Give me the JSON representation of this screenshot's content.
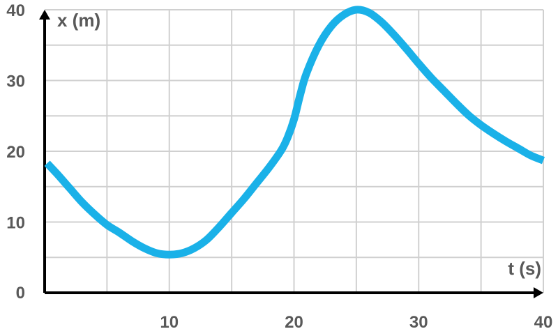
{
  "chart_data": {
    "type": "line",
    "title": "",
    "xlabel": "t (s)",
    "ylabel": "x (m)",
    "xlim": [
      0,
      40
    ],
    "ylim": [
      0,
      40
    ],
    "grid": true,
    "x_ticks": [
      0,
      5,
      10,
      15,
      20,
      25,
      30,
      35,
      40
    ],
    "y_ticks": [
      0,
      5,
      10,
      15,
      20,
      25,
      30,
      35,
      40
    ],
    "x_tick_labels": [
      {
        "value": 10,
        "label": "10"
      },
      {
        "value": 20,
        "label": "20"
      },
      {
        "value": 30,
        "label": "30"
      },
      {
        "value": 40,
        "label": "40"
      }
    ],
    "y_tick_labels": [
      {
        "value": 0,
        "label": "0"
      },
      {
        "value": 10,
        "label": "10"
      },
      {
        "value": 20,
        "label": "20"
      },
      {
        "value": 30,
        "label": "30"
      },
      {
        "value": 40,
        "label": "40"
      }
    ],
    "line_color": "#1ab1e8",
    "axis_color": "#000000",
    "grid_color": "#d0d0d0",
    "series": [
      {
        "x": [
          0.2,
          1,
          2,
          3,
          4,
          5,
          6,
          7,
          8,
          9,
          10,
          11,
          12,
          13,
          14,
          15,
          16,
          17,
          18,
          19,
          19.5,
          20,
          20.5,
          21,
          22,
          23,
          24,
          25,
          26,
          27,
          28,
          29,
          30,
          31,
          32,
          33,
          34,
          35,
          36,
          37,
          38,
          39,
          40
        ],
        "y": [
          18.3,
          16.8,
          14.8,
          12.8,
          11.1,
          9.6,
          8.5,
          7.3,
          6.3,
          5.6,
          5.4,
          5.6,
          6.3,
          7.5,
          9.3,
          11.3,
          13.3,
          15.5,
          17.7,
          20.2,
          22.0,
          24.5,
          28.0,
          31.0,
          35.0,
          37.7,
          39.3,
          40.0,
          39.6,
          38.3,
          36.5,
          34.5,
          32.4,
          30.4,
          28.6,
          26.8,
          25.1,
          23.7,
          22.5,
          21.4,
          20.4,
          19.4,
          18.7
        ]
      }
    ]
  }
}
